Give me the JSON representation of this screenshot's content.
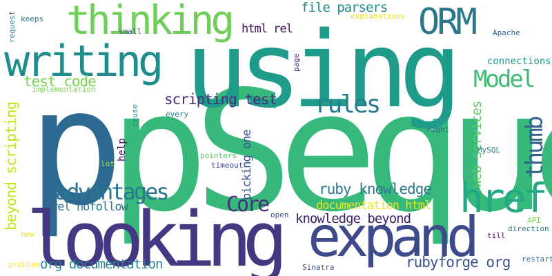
{
  "background": "#ffffff",
  "words": [
    {
      "text": "pSequel",
      "color": "#37b97b"
    },
    {
      "text": "p",
      "color": "#2c6a92"
    },
    {
      "text": "using",
      "color": "#1f9b8a"
    },
    {
      "text": "looking",
      "color": "#453781"
    },
    {
      "text": "expand",
      "color": "#3e4a89"
    },
    {
      "text": "writing",
      "color": "#1f8d8c"
    },
    {
      "text": "thinking",
      "color": "#6ece58"
    },
    {
      "text": "ORM",
      "color": "#2a788e"
    },
    {
      "text": "href",
      "color": "#24a884"
    },
    {
      "text": "Model",
      "color": "#3fbc73"
    },
    {
      "text": "thumb",
      "color": "#33638d"
    },
    {
      "text": "rules",
      "color": "#287d8e"
    },
    {
      "text": "advantages",
      "color": "#2a768e"
    },
    {
      "text": "Core",
      "color": "#46307e"
    },
    {
      "text": "scripting test",
      "color": "#472d7b"
    },
    {
      "text": "test code",
      "color": "#7ad151"
    },
    {
      "text": "file parsers",
      "color": "#228c8d"
    },
    {
      "text": "html rel",
      "color": "#440f5e"
    },
    {
      "text": "ruby knowledge",
      "color": "#2a788e"
    },
    {
      "text": "knowledge beyond",
      "color": "#3e1f6d"
    },
    {
      "text": "documentation html",
      "color": "#f0e51a"
    },
    {
      "text": "rel nofollow",
      "color": "#2c738e"
    },
    {
      "text": "org documentation",
      "color": "#26828e"
    },
    {
      "text": "rubyforge org",
      "color": "#3b518b"
    },
    {
      "text": "beyond scripting",
      "color": "#c8e020"
    },
    {
      "text": "web services",
      "color": "#5ec962"
    },
    {
      "text": "picking one",
      "color": "#3b528b"
    },
    {
      "text": "connections",
      "color": "#1f9a8a"
    },
    {
      "text": "keeps",
      "color": "#2a788e"
    },
    {
      "text": "request",
      "color": "#287d8e"
    },
    {
      "text": "small",
      "color": "#3b528b"
    },
    {
      "text": "explanations",
      "color": "#dde318"
    },
    {
      "text": "implementation",
      "color": "#7ad151"
    },
    {
      "text": "page",
      "color": "#482979"
    },
    {
      "text": "Apache",
      "color": "#31688e"
    },
    {
      "text": "every",
      "color": "#287d8e"
    },
    {
      "text": "reuse",
      "color": "#25858e"
    },
    {
      "text": "help",
      "color": "#440154"
    },
    {
      "text": "lot",
      "color": "#b5de2b"
    },
    {
      "text": "pointers",
      "color": "#56c667"
    },
    {
      "text": "timeout",
      "color": "#414487"
    },
    {
      "text": "right",
      "color": "#31688e"
    },
    {
      "text": "MySQL",
      "color": "#2a788e"
    },
    {
      "text": "open",
      "color": "#3b528b"
    },
    {
      "text": "API",
      "color": "#7ad151"
    },
    {
      "text": "direction",
      "color": "#2a788e"
    },
    {
      "text": "till",
      "color": "#440154"
    },
    {
      "text": "new",
      "color": "#dde318"
    },
    {
      "text": "problem",
      "color": "#fde725"
    },
    {
      "text": "Sinatra",
      "color": "#3e4989"
    },
    {
      "text": "restart",
      "color": "#31688e"
    }
  ]
}
